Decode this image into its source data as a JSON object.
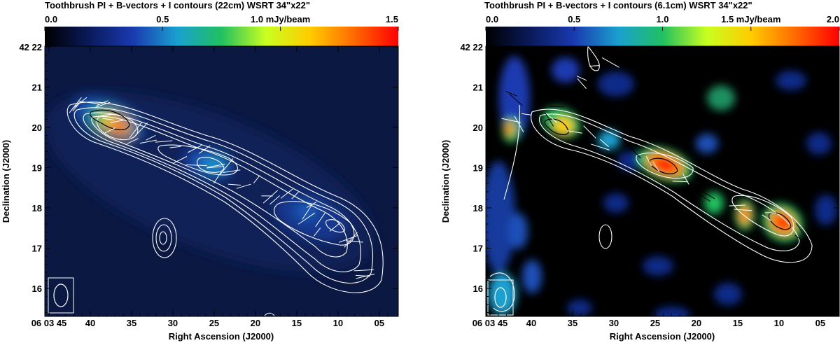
{
  "chart_data": [
    {
      "type": "heatmap",
      "title": "Toothbrush    PI + B-vectors + I contours (22cm)    WSRT   34\"x22\"",
      "colorbar": {
        "ticks": [
          "0.0",
          "0.5",
          "1.0 mJy/beam",
          "1.5"
        ],
        "values": [
          0.0,
          0.5,
          1.0,
          1.5
        ],
        "range": [
          0.0,
          1.5
        ],
        "unit": "mJy/beam"
      },
      "xlabel": "Right Ascension (J2000)",
      "ylabel": "Declination (J2000)",
      "xticks": [
        "06 03 45",
        "40",
        "35",
        "30",
        "25",
        "20",
        "15",
        "10",
        "05"
      ],
      "yticks": [
        "42 22",
        "21",
        "20",
        "19",
        "18",
        "17",
        "16"
      ],
      "colormap": [
        "#000000",
        "#0a1a5a",
        "#1a3ab0",
        "#1aa0d0",
        "#20c060",
        "#c8ff20",
        "#ffcc00",
        "#ff6a00",
        "#ff0000"
      ],
      "peaks": [
        {
          "ra_s": 39.5,
          "dec": 20.0,
          "level": 1.2
        },
        {
          "ra_s": 26.5,
          "dec": 19.05,
          "level": 0.55
        },
        {
          "ra_s": 13.5,
          "dec": 17.8,
          "level": 0.35
        }
      ]
    },
    {
      "type": "heatmap",
      "title": "Toothbrush    PI + B-vectors + I contours (6.1cm)    WSRT   34\"x22\"",
      "colorbar": {
        "ticks": [
          "0.0",
          "0.5",
          "1.0",
          "1.5 mJy/beam",
          "2.0"
        ],
        "values": [
          0.0,
          0.5,
          1.0,
          1.5,
          2.0
        ],
        "range": [
          0.0,
          2.0
        ],
        "unit": "mJy/beam"
      },
      "xlabel": "Right Ascension (J2000)",
      "ylabel": "Declination (J2000)",
      "xticks": [
        "06 03 45",
        "40",
        "35",
        "30",
        "25",
        "20",
        "15",
        "10",
        "05"
      ],
      "yticks": [
        "42 22",
        "21",
        "20",
        "19",
        "18",
        "17",
        "16"
      ],
      "colormap": [
        "#000000",
        "#0a1a5a",
        "#1a3ab0",
        "#1aa0d0",
        "#20c060",
        "#c8ff20",
        "#ffcc00",
        "#ff6a00",
        "#ff0000"
      ],
      "peaks": [
        {
          "ra_s": 39.0,
          "dec": 20.0,
          "level": 1.3
        },
        {
          "ra_s": 44.0,
          "dec": 19.9,
          "level": 1.2
        },
        {
          "ra_s": 25.5,
          "dec": 19.0,
          "level": 1.9
        },
        {
          "ra_s": 14.5,
          "dec": 17.8,
          "level": 1.4
        },
        {
          "ra_s": 10.0,
          "dec": 17.6,
          "level": 1.6
        }
      ]
    }
  ]
}
